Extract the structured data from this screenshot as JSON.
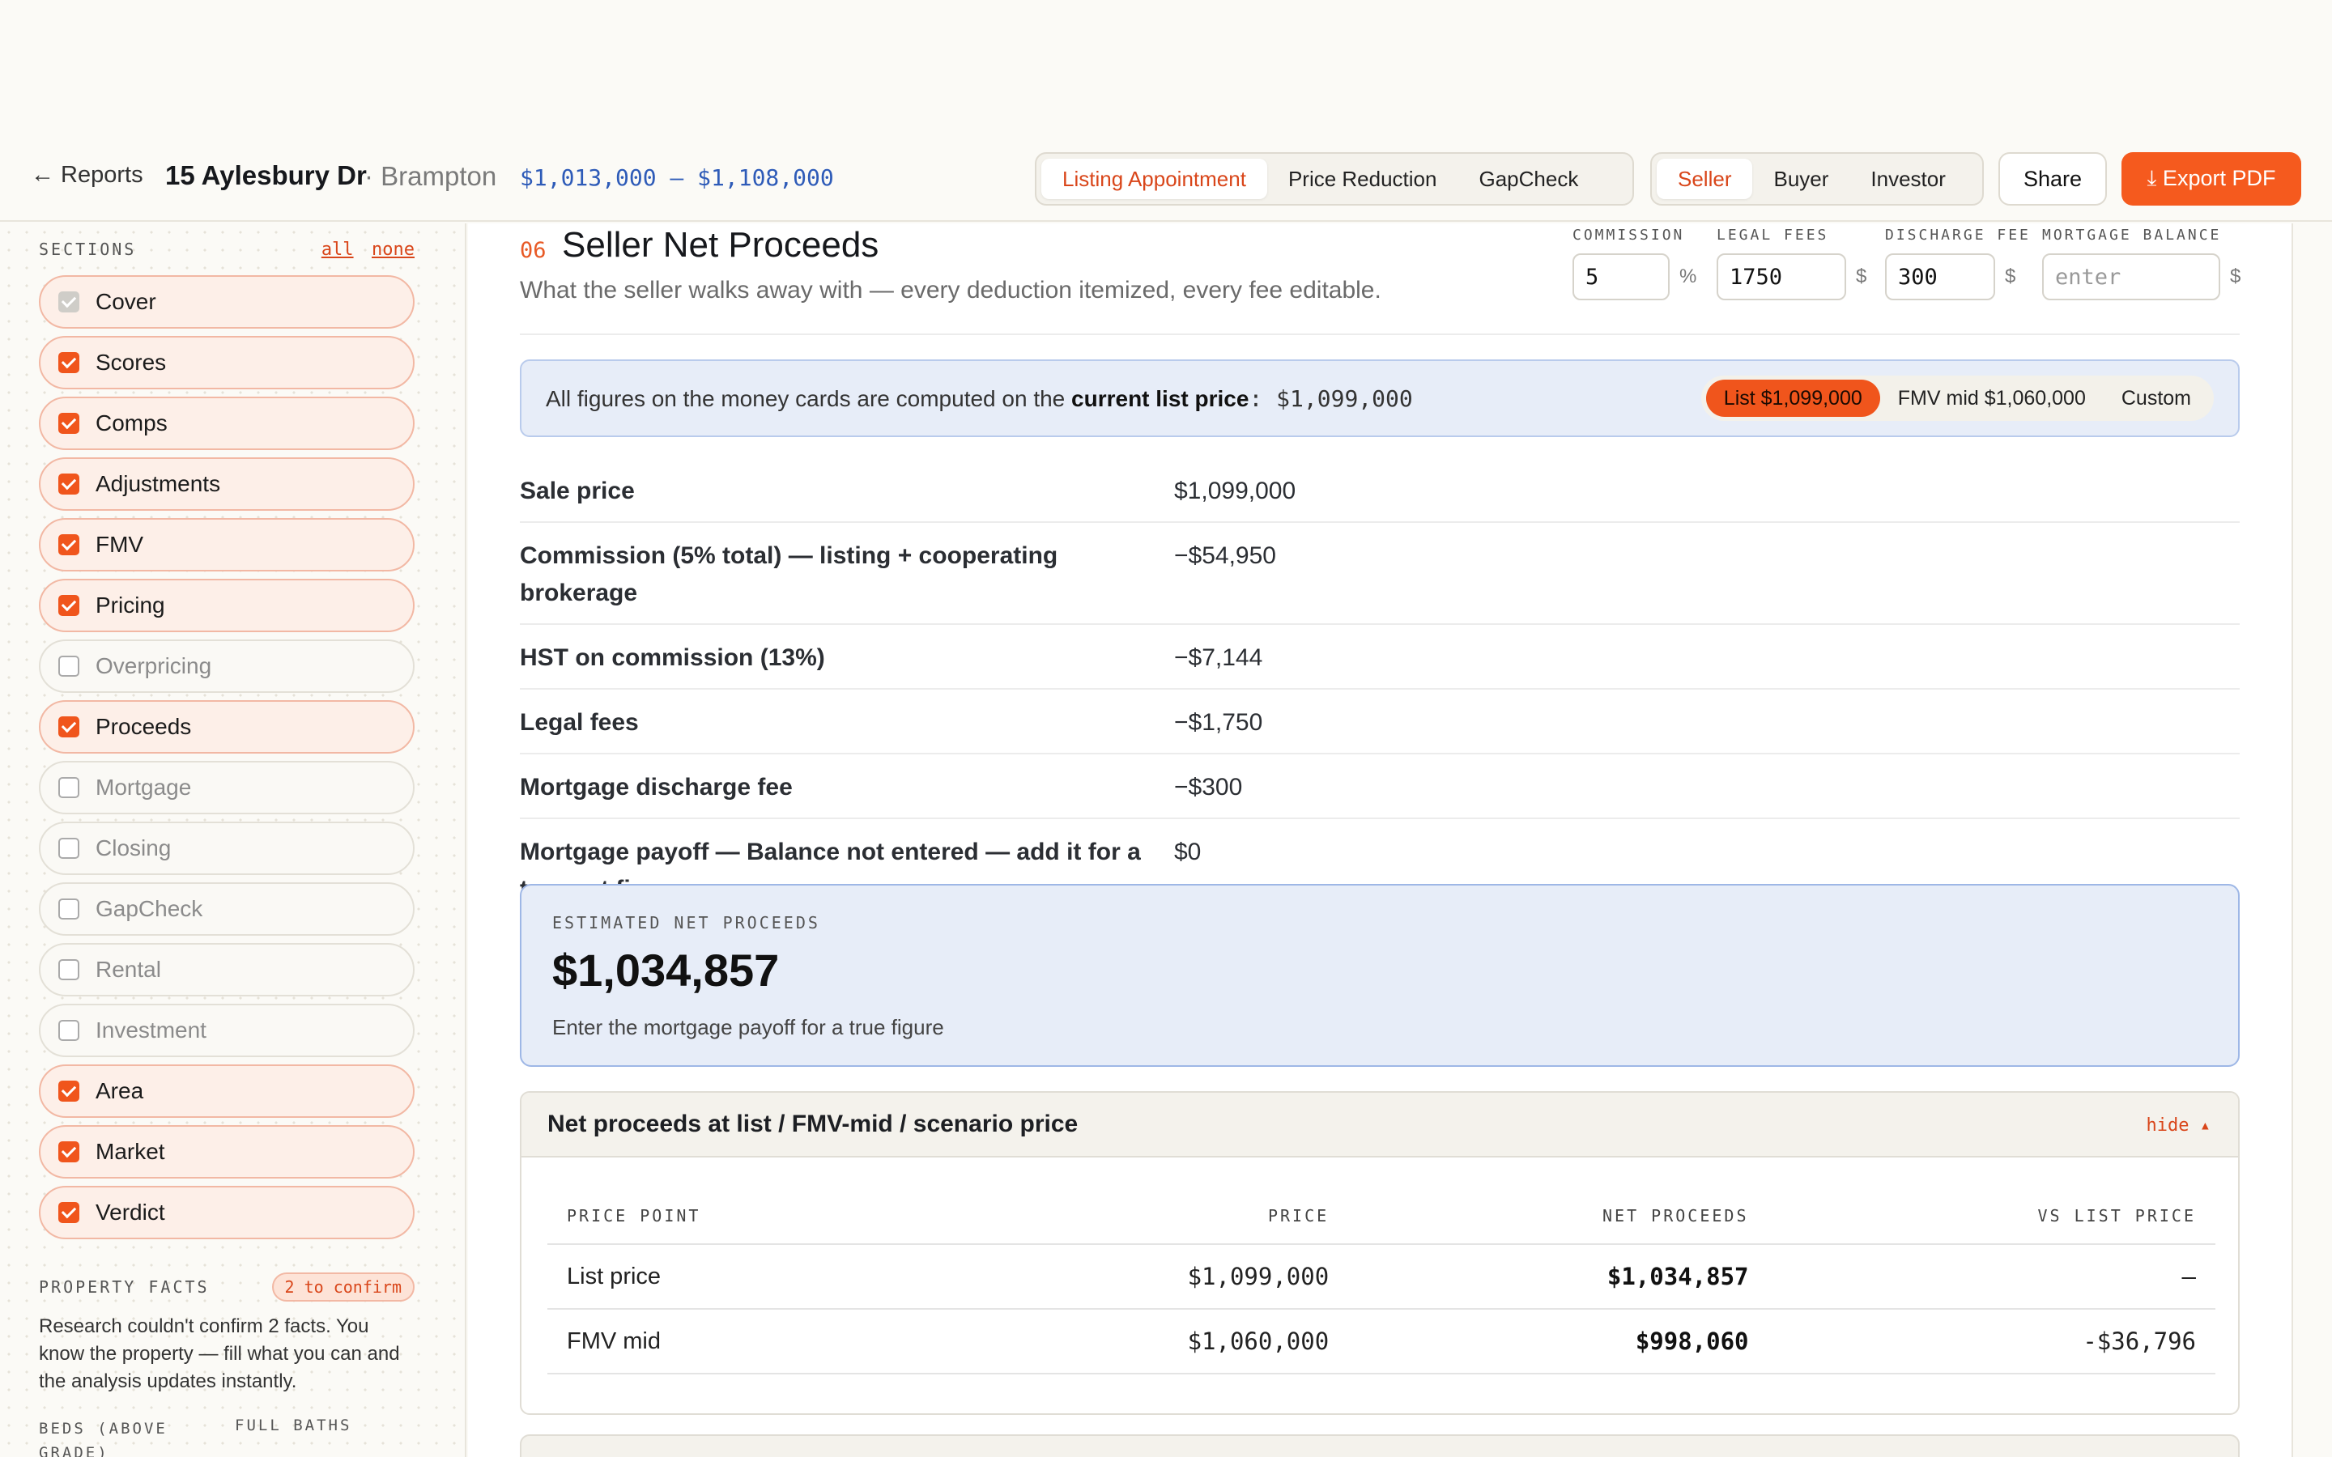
{
  "header": {
    "back_label": "← Reports",
    "address": "15 Aylesbury Dr",
    "city": "· Brampton",
    "price_range": "$1,013,000 – $1,108,000",
    "modes": [
      "Listing Appointment",
      "Price Reduction",
      "GapCheck"
    ],
    "active_mode": "Listing Appointment",
    "audiences": [
      "Seller",
      "Buyer",
      "Investor"
    ],
    "active_audience": "Seller",
    "share_label": "Share",
    "export_label": "⤓ Export PDF"
  },
  "sidebar": {
    "sections_label": "SECTIONS",
    "all_label": "all",
    "none_label": "none",
    "items": [
      {
        "label": "Cover",
        "checked": true,
        "locked": true
      },
      {
        "label": "Scores",
        "checked": true
      },
      {
        "label": "Comps",
        "checked": true
      },
      {
        "label": "Adjustments",
        "checked": true
      },
      {
        "label": "FMV",
        "checked": true
      },
      {
        "label": "Pricing",
        "checked": true
      },
      {
        "label": "Overpricing",
        "checked": false
      },
      {
        "label": "Proceeds",
        "checked": true
      },
      {
        "label": "Mortgage",
        "checked": false
      },
      {
        "label": "Closing",
        "checked": false
      },
      {
        "label": "GapCheck",
        "checked": false
      },
      {
        "label": "Rental",
        "checked": false
      },
      {
        "label": "Investment",
        "checked": false
      },
      {
        "label": "Area",
        "checked": true
      },
      {
        "label": "Market",
        "checked": true
      },
      {
        "label": "Verdict",
        "checked": true
      }
    ],
    "property_facts_label": "PROPERTY FACTS",
    "confirm_badge": "2 to confirm",
    "facts_text": "Research couldn't confirm 2 facts. You know the property — fill what you can and the analysis updates instantly.",
    "beds_label": "BEDS (ABOVE GRADE)",
    "baths_label": "FULL BATHS"
  },
  "main": {
    "section_number": "06",
    "section_title": "Seller Net Proceeds",
    "section_desc": "What the seller walks away with — every deduction itemized, every fee editable.",
    "fields": {
      "commission_label": "COMMISSION",
      "commission_value": "5",
      "commission_unit": "%",
      "legal_label": "LEGAL FEES",
      "legal_value": "1750",
      "legal_unit": "$",
      "discharge_label": "DISCHARGE FEE",
      "discharge_value": "300",
      "discharge_unit": "$",
      "mortgage_label": "MORTGAGE BALANCE",
      "mortgage_placeholder": "enter",
      "mortgage_unit": "$"
    },
    "banner": {
      "text_prefix": "All figures on the money cards are computed on the ",
      "text_bold": "current list price",
      "text_value": ": $1,099,000",
      "options": [
        "List $1,099,000",
        "FMV mid $1,060,000",
        "Custom"
      ],
      "active_option": "List $1,099,000"
    },
    "rows": [
      {
        "label": "Sale price",
        "value": "$1,099,000"
      },
      {
        "label": "Commission (5% total) — listing + cooperating brokerage",
        "value": "−$54,950"
      },
      {
        "label": "HST on commission (13%)",
        "value": "−$7,144"
      },
      {
        "label": "Legal fees",
        "value": "−$1,750"
      },
      {
        "label": "Mortgage discharge fee",
        "value": "−$300"
      },
      {
        "label": "Mortgage payoff — Balance not entered — add it for a true net figure",
        "value": "$0"
      }
    ],
    "estimate": {
      "label": "ESTIMATED NET PROCEEDS",
      "value": "$1,034,857",
      "note": "Enter the mortgage payoff for a true figure"
    },
    "net_table": {
      "title": "Net proceeds at list / FMV-mid / scenario price",
      "hide_label": "hide ▴",
      "columns": [
        "PRICE POINT",
        "PRICE",
        "NET PROCEEDS",
        "VS LIST PRICE"
      ],
      "rows": [
        [
          "List price",
          "$1,099,000",
          "$1,034,857",
          "—"
        ],
        [
          "FMV mid",
          "$1,060,000",
          "$998,060",
          "-$36,796"
        ]
      ]
    }
  },
  "colors": {
    "accent": "#f0551c",
    "accent_text": "#d9461a",
    "link_blue": "#2e5bb8",
    "info_bg": "#e7edf8"
  }
}
